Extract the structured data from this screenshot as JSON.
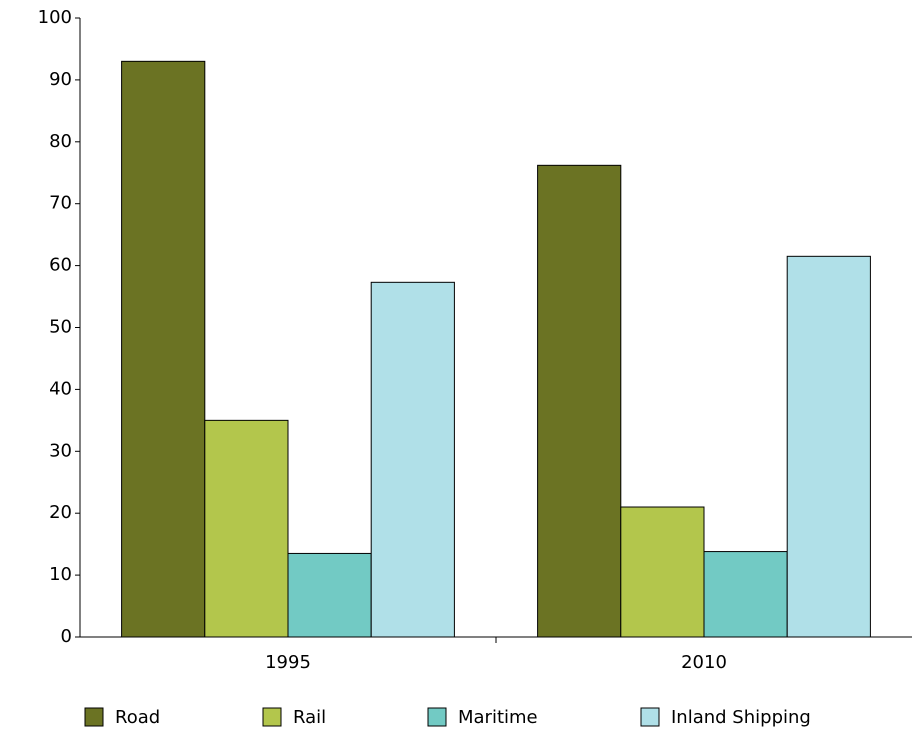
{
  "chart_data": {
    "type": "bar",
    "categories": [
      "1995",
      "2010"
    ],
    "series": [
      {
        "name": "Road",
        "color": "#6b7323",
        "values": [
          93,
          76.2
        ]
      },
      {
        "name": "Rail",
        "color": "#b3c64c",
        "values": [
          35,
          21
        ]
      },
      {
        "name": "Maritime",
        "color": "#72cac4",
        "values": [
          13.5,
          13.8
        ]
      },
      {
        "name": "Inland Shipping",
        "color": "#b0e0e8",
        "values": [
          57.3,
          61.5
        ]
      }
    ],
    "ylim": [
      0,
      100
    ],
    "yticks": [
      0,
      10,
      20,
      30,
      40,
      50,
      60,
      70,
      80,
      90,
      100
    ],
    "grid": false,
    "legend": "bottom"
  }
}
